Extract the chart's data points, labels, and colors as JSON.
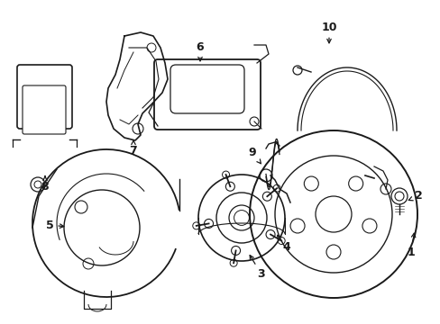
{
  "background_color": "#ffffff",
  "line_color": "#1a1a1a",
  "lw": 1.0,
  "fig_width": 4.89,
  "fig_height": 3.6,
  "dpi": 100
}
